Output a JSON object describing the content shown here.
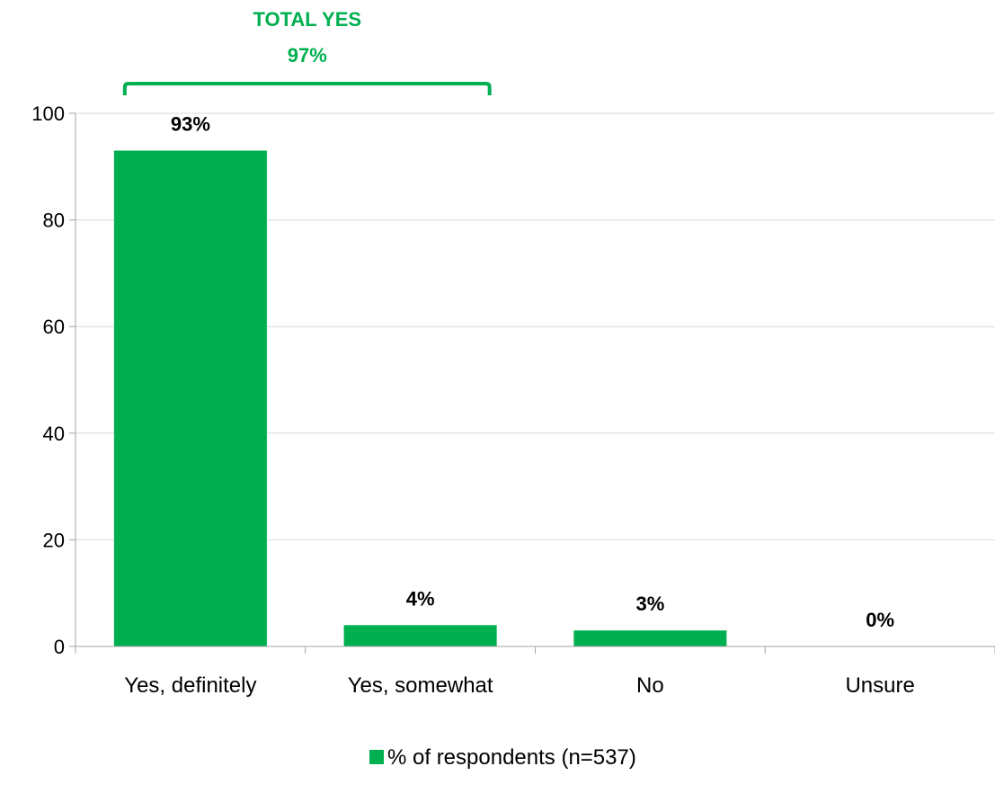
{
  "chart_data": {
    "type": "bar",
    "categories": [
      "Yes, definitely",
      "Yes, somewhat",
      "No",
      "Unsure"
    ],
    "values": [
      93,
      4,
      3,
      0
    ],
    "data_labels": [
      "93%",
      "4%",
      "3%",
      "0%"
    ],
    "series": [
      {
        "name": "% of respondents (n=537)",
        "values": [
          93,
          4,
          3,
          0
        ]
      }
    ],
    "ylim": [
      0,
      100
    ],
    "yticks": [
      0,
      20,
      40,
      60,
      80,
      100
    ],
    "grid": true,
    "legend": {
      "position": "bottom-center",
      "label": "% of respondents (n=537)"
    },
    "annotation": {
      "title": "TOTAL YES",
      "value": "97%",
      "spans_categories": [
        "Yes, definitely",
        "Yes, somewhat"
      ]
    },
    "colors": {
      "bar": "#00b050",
      "annotation": "#00b050",
      "grid": "#d9d9d9",
      "axis": "#a6a6a6",
      "text": "#000000"
    }
  }
}
